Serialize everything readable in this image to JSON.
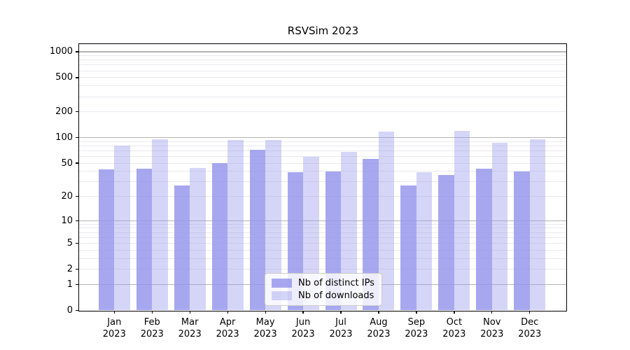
{
  "chart_data": {
    "type": "bar",
    "title": "RSVSim 2023",
    "categories": [
      "Jan",
      "Feb",
      "Mar",
      "Apr",
      "May",
      "Jun",
      "Jul",
      "Aug",
      "Sep",
      "Oct",
      "Nov",
      "Dec"
    ],
    "category_year": "2023",
    "series": [
      {
        "name": "Nb of distinct IPs",
        "color": "#a7a7f0",
        "rgba": "rgba(148,148,237,0.82)",
        "values": [
          42,
          43,
          27,
          50,
          72,
          39,
          40,
          56,
          27,
          36,
          43,
          40
        ]
      },
      {
        "name": "Nb of downloads",
        "color": "#d5d5f7",
        "rgba": "rgba(150,150,236,0.40)",
        "values": [
          80,
          96,
          44,
          94,
          94,
          59,
          68,
          117,
          39,
          120,
          87,
          96
        ]
      }
    ],
    "yticks": [
      0,
      1,
      2,
      5,
      10,
      20,
      50,
      100,
      200,
      500,
      1000
    ],
    "y_major_ticks": [
      1,
      10,
      100,
      1000
    ],
    "y_minor_gridlines": [
      2,
      3,
      4,
      5,
      6,
      7,
      8,
      9,
      20,
      30,
      40,
      50,
      60,
      70,
      80,
      90,
      200,
      300,
      400,
      500,
      600,
      700,
      800,
      900
    ],
    "y_scale": "log1p",
    "ylim": [
      0,
      1228
    ],
    "xlabel": "",
    "ylabel": "",
    "grid": true,
    "legend_position": "lower center",
    "colors": {
      "major_grid": "#b4b4b4",
      "minor_grid": "#e9e9ee",
      "axis": "#000000",
      "legend_border": "#cccccc"
    }
  }
}
